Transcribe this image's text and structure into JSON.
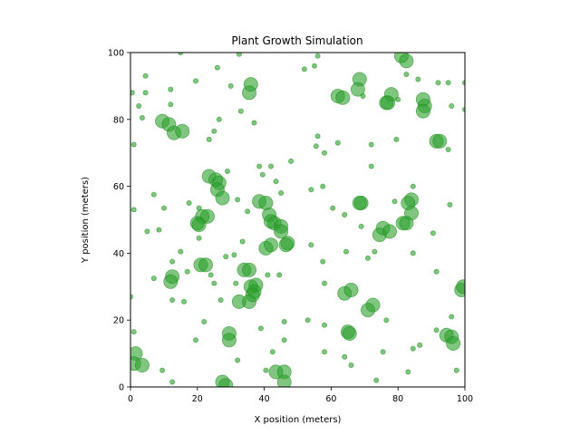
{
  "chart_data": {
    "type": "scatter",
    "title": "Plant Growth Simulation",
    "xlabel": "X position (meters)",
    "ylabel": "Y position (meters)",
    "xlim": [
      0,
      100
    ],
    "ylim": [
      0,
      100
    ],
    "x_ticks": [
      "0",
      "20",
      "40",
      "60",
      "80",
      "100"
    ],
    "y_ticks": [
      "0",
      "20",
      "40",
      "60",
      "80",
      "100"
    ],
    "grid": false,
    "marker_color": "#2ca02c",
    "marker_edge_color": "#1a8a1a",
    "marker_alpha": 0.6,
    "size_note": "marker area encodes plant size (small/medium/large)",
    "points": [
      {
        "x": 9.5,
        "y": 79.5,
        "s": "l"
      },
      {
        "x": 11.5,
        "y": 78.5,
        "s": "l"
      },
      {
        "x": 13,
        "y": 76,
        "s": "l"
      },
      {
        "x": 15.5,
        "y": 76.5,
        "s": "l"
      },
      {
        "x": 36,
        "y": 90.5,
        "s": "l"
      },
      {
        "x": 35.5,
        "y": 88,
        "s": "l"
      },
      {
        "x": 23.5,
        "y": 63,
        "s": "l"
      },
      {
        "x": 25.5,
        "y": 62,
        "s": "l"
      },
      {
        "x": 26.5,
        "y": 61,
        "s": "l"
      },
      {
        "x": 26,
        "y": 59,
        "s": "l"
      },
      {
        "x": 27.5,
        "y": 56.5,
        "s": "l"
      },
      {
        "x": 21.5,
        "y": 51,
        "s": "l"
      },
      {
        "x": 23,
        "y": 51,
        "s": "l"
      },
      {
        "x": 20,
        "y": 49,
        "s": "l"
      },
      {
        "x": 20.5,
        "y": 48.5,
        "s": "l"
      },
      {
        "x": 38.5,
        "y": 55.5,
        "s": "l"
      },
      {
        "x": 40.5,
        "y": 55,
        "s": "l"
      },
      {
        "x": 41.5,
        "y": 51.5,
        "s": "l"
      },
      {
        "x": 42,
        "y": 49.5,
        "s": "l"
      },
      {
        "x": 43,
        "y": 49,
        "s": "l"
      },
      {
        "x": 45,
        "y": 48,
        "s": "l"
      },
      {
        "x": 45,
        "y": 46.5,
        "s": "l"
      },
      {
        "x": 47,
        "y": 43,
        "s": "l"
      },
      {
        "x": 46.5,
        "y": 42.5,
        "s": "l"
      },
      {
        "x": 42,
        "y": 42.5,
        "s": "l"
      },
      {
        "x": 40.5,
        "y": 41.5,
        "s": "l"
      },
      {
        "x": 21,
        "y": 36.5,
        "s": "l"
      },
      {
        "x": 22.5,
        "y": 36.5,
        "s": "l"
      },
      {
        "x": 12.5,
        "y": 33,
        "s": "l"
      },
      {
        "x": 12,
        "y": 31.5,
        "s": "l"
      },
      {
        "x": 34,
        "y": 35,
        "s": "l"
      },
      {
        "x": 35.5,
        "y": 35,
        "s": "l"
      },
      {
        "x": 36,
        "y": 30,
        "s": "l"
      },
      {
        "x": 37.5,
        "y": 30.5,
        "s": "l"
      },
      {
        "x": 37,
        "y": 28.5,
        "s": "l"
      },
      {
        "x": 36.5,
        "y": 27.5,
        "s": "l"
      },
      {
        "x": 32.5,
        "y": 25.5,
        "s": "l"
      },
      {
        "x": 35.5,
        "y": 25.5,
        "s": "l"
      },
      {
        "x": 29.5,
        "y": 16,
        "s": "l"
      },
      {
        "x": 29.5,
        "y": 14,
        "s": "l"
      },
      {
        "x": 27.5,
        "y": 1.5,
        "s": "l"
      },
      {
        "x": 28.5,
        "y": 0.5,
        "s": "l"
      },
      {
        "x": 1.5,
        "y": 10,
        "s": "l"
      },
      {
        "x": 1,
        "y": 7,
        "s": "l"
      },
      {
        "x": 3.5,
        "y": 6.5,
        "s": "l"
      },
      {
        "x": 43.5,
        "y": 4.5,
        "s": "l"
      },
      {
        "x": 46,
        "y": 4.5,
        "s": "l"
      },
      {
        "x": 46,
        "y": 1.5,
        "s": "l"
      },
      {
        "x": 62,
        "y": 87,
        "s": "l"
      },
      {
        "x": 63.5,
        "y": 86.5,
        "s": "l"
      },
      {
        "x": 68.5,
        "y": 92,
        "s": "l"
      },
      {
        "x": 68,
        "y": 89,
        "s": "l"
      },
      {
        "x": 78,
        "y": 87.5,
        "s": "l"
      },
      {
        "x": 76.5,
        "y": 85,
        "s": "l"
      },
      {
        "x": 77,
        "y": 85,
        "s": "l"
      },
      {
        "x": 81,
        "y": 99,
        "s": "l"
      },
      {
        "x": 82.5,
        "y": 97.5,
        "s": "l"
      },
      {
        "x": 87.5,
        "y": 86,
        "s": "l"
      },
      {
        "x": 88,
        "y": 84,
        "s": "l"
      },
      {
        "x": 87.5,
        "y": 82.5,
        "s": "l"
      },
      {
        "x": 91.5,
        "y": 73.5,
        "s": "l"
      },
      {
        "x": 92.5,
        "y": 73.5,
        "s": "l"
      },
      {
        "x": 69,
        "y": 55,
        "s": "l"
      },
      {
        "x": 68.5,
        "y": 55,
        "s": "l"
      },
      {
        "x": 84,
        "y": 56,
        "s": "l"
      },
      {
        "x": 83,
        "y": 55,
        "s": "l"
      },
      {
        "x": 84,
        "y": 52,
        "s": "l"
      },
      {
        "x": 81.5,
        "y": 49,
        "s": "l"
      },
      {
        "x": 82.5,
        "y": 49,
        "s": "l"
      },
      {
        "x": 75.5,
        "y": 47.5,
        "s": "l"
      },
      {
        "x": 74.5,
        "y": 45.5,
        "s": "l"
      },
      {
        "x": 77.5,
        "y": 46.5,
        "s": "l"
      },
      {
        "x": 64,
        "y": 28,
        "s": "l"
      },
      {
        "x": 66,
        "y": 29,
        "s": "l"
      },
      {
        "x": 72.5,
        "y": 24.5,
        "s": "l"
      },
      {
        "x": 71,
        "y": 23,
        "s": "l"
      },
      {
        "x": 65,
        "y": 16.5,
        "s": "l"
      },
      {
        "x": 65.5,
        "y": 16,
        "s": "l"
      },
      {
        "x": 94.5,
        "y": 15.5,
        "s": "l"
      },
      {
        "x": 96,
        "y": 15,
        "s": "l"
      },
      {
        "x": 96.5,
        "y": 13,
        "s": "l"
      },
      {
        "x": 99,
        "y": 29,
        "s": "l"
      },
      {
        "x": 99.5,
        "y": 30,
        "s": "l"
      },
      {
        "x": 0.5,
        "y": 88,
        "s": "s"
      },
      {
        "x": 4.5,
        "y": 88,
        "s": "s"
      },
      {
        "x": 4.5,
        "y": 93,
        "s": "s"
      },
      {
        "x": 2.5,
        "y": 84,
        "s": "s"
      },
      {
        "x": 3.5,
        "y": 80.5,
        "s": "s"
      },
      {
        "x": 12,
        "y": 89,
        "s": "s"
      },
      {
        "x": 12,
        "y": 84.5,
        "s": "s"
      },
      {
        "x": 15,
        "y": 100,
        "s": "s"
      },
      {
        "x": 19.5,
        "y": 91.5,
        "s": "s"
      },
      {
        "x": 26,
        "y": 95.5,
        "s": "s"
      },
      {
        "x": 32.5,
        "y": 99.5,
        "s": "s"
      },
      {
        "x": 30,
        "y": 90,
        "s": "s"
      },
      {
        "x": 33,
        "y": 82.5,
        "s": "s"
      },
      {
        "x": 37,
        "y": 79,
        "s": "s"
      },
      {
        "x": 26.5,
        "y": 80,
        "s": "s"
      },
      {
        "x": 25,
        "y": 76.5,
        "s": "s"
      },
      {
        "x": 23.5,
        "y": 74,
        "s": "s"
      },
      {
        "x": 1,
        "y": 72.5,
        "s": "s"
      },
      {
        "x": 38.5,
        "y": 66,
        "s": "s"
      },
      {
        "x": 42,
        "y": 66,
        "s": "s"
      },
      {
        "x": 39.5,
        "y": 63.5,
        "s": "s"
      },
      {
        "x": 43.5,
        "y": 61.5,
        "s": "s"
      },
      {
        "x": 45,
        "y": 58,
        "s": "s"
      },
      {
        "x": 48,
        "y": 67.5,
        "s": "s"
      },
      {
        "x": 29,
        "y": 64.5,
        "s": "s"
      },
      {
        "x": 7,
        "y": 57.5,
        "s": "s"
      },
      {
        "x": 1,
        "y": 53,
        "s": "s"
      },
      {
        "x": 10,
        "y": 53.5,
        "s": "s"
      },
      {
        "x": 17.5,
        "y": 55,
        "s": "s"
      },
      {
        "x": 20.5,
        "y": 53.5,
        "s": "s"
      },
      {
        "x": 32,
        "y": 56,
        "s": "s"
      },
      {
        "x": 35,
        "y": 52.5,
        "s": "s"
      },
      {
        "x": 5,
        "y": 46.5,
        "s": "s"
      },
      {
        "x": 8.5,
        "y": 47,
        "s": "s"
      },
      {
        "x": 20.5,
        "y": 44.5,
        "s": "s"
      },
      {
        "x": 33.5,
        "y": 43.5,
        "s": "s"
      },
      {
        "x": 28.5,
        "y": 39,
        "s": "s"
      },
      {
        "x": 31,
        "y": 39.5,
        "s": "s"
      },
      {
        "x": 15,
        "y": 40.5,
        "s": "s"
      },
      {
        "x": 12.5,
        "y": 37.5,
        "s": "s"
      },
      {
        "x": 17,
        "y": 34.5,
        "s": "s"
      },
      {
        "x": 7,
        "y": 32.5,
        "s": "s"
      },
      {
        "x": 24,
        "y": 33.5,
        "s": "s"
      },
      {
        "x": 25,
        "y": 31,
        "s": "s"
      },
      {
        "x": 31.5,
        "y": 31,
        "s": "s"
      },
      {
        "x": 41,
        "y": 33.5,
        "s": "s"
      },
      {
        "x": 44.5,
        "y": 33.5,
        "s": "s"
      },
      {
        "x": 0,
        "y": 27,
        "s": "s"
      },
      {
        "x": 12.5,
        "y": 26,
        "s": "s"
      },
      {
        "x": 16,
        "y": 25.5,
        "s": "s"
      },
      {
        "x": 27,
        "y": 26,
        "s": "s"
      },
      {
        "x": 22,
        "y": 19.5,
        "s": "s"
      },
      {
        "x": 1,
        "y": 16.5,
        "s": "s"
      },
      {
        "x": 19.5,
        "y": 14,
        "s": "s"
      },
      {
        "x": 9.5,
        "y": 5,
        "s": "s"
      },
      {
        "x": 12.5,
        "y": 1.5,
        "s": "s"
      },
      {
        "x": 32,
        "y": 8,
        "s": "s"
      },
      {
        "x": 39,
        "y": 17.5,
        "s": "s"
      },
      {
        "x": 42.5,
        "y": 10.5,
        "s": "s"
      },
      {
        "x": 46,
        "y": 14,
        "s": "s"
      },
      {
        "x": 46,
        "y": 19.5,
        "s": "s"
      },
      {
        "x": 40.5,
        "y": 5,
        "s": "s"
      },
      {
        "x": 52,
        "y": 95,
        "s": "s"
      },
      {
        "x": 55,
        "y": 96,
        "s": "s"
      },
      {
        "x": 56,
        "y": 99,
        "s": "s"
      },
      {
        "x": 69.5,
        "y": 87,
        "s": "s"
      },
      {
        "x": 80,
        "y": 86,
        "s": "s"
      },
      {
        "x": 82.5,
        "y": 93.5,
        "s": "s"
      },
      {
        "x": 86,
        "y": 92,
        "s": "s"
      },
      {
        "x": 92,
        "y": 91,
        "s": "s"
      },
      {
        "x": 95,
        "y": 91,
        "s": "s"
      },
      {
        "x": 100,
        "y": 91,
        "s": "s"
      },
      {
        "x": 96,
        "y": 84,
        "s": "s"
      },
      {
        "x": 100,
        "y": 83,
        "s": "s"
      },
      {
        "x": 56,
        "y": 75,
        "s": "s"
      },
      {
        "x": 55.5,
        "y": 72,
        "s": "s"
      },
      {
        "x": 58,
        "y": 70,
        "s": "s"
      },
      {
        "x": 62,
        "y": 73,
        "s": "s"
      },
      {
        "x": 72,
        "y": 72.5,
        "s": "s"
      },
      {
        "x": 79.5,
        "y": 74,
        "s": "s"
      },
      {
        "x": 95,
        "y": 71,
        "s": "s"
      },
      {
        "x": 72,
        "y": 66,
        "s": "s"
      },
      {
        "x": 54,
        "y": 59,
        "s": "s"
      },
      {
        "x": 57.5,
        "y": 60,
        "s": "s"
      },
      {
        "x": 84.5,
        "y": 60,
        "s": "s"
      },
      {
        "x": 60.5,
        "y": 53.5,
        "s": "s"
      },
      {
        "x": 64,
        "y": 51.5,
        "s": "s"
      },
      {
        "x": 79,
        "y": 55.5,
        "s": "s"
      },
      {
        "x": 95.5,
        "y": 54.5,
        "s": "s"
      },
      {
        "x": 69,
        "y": 48,
        "s": "s"
      },
      {
        "x": 90.5,
        "y": 46,
        "s": "s"
      },
      {
        "x": 54,
        "y": 42.5,
        "s": "s"
      },
      {
        "x": 64.5,
        "y": 40.5,
        "s": "s"
      },
      {
        "x": 71,
        "y": 38.5,
        "s": "s"
      },
      {
        "x": 57.5,
        "y": 37.5,
        "s": "s"
      },
      {
        "x": 73,
        "y": 40.5,
        "s": "s"
      },
      {
        "x": 84.5,
        "y": 40,
        "s": "s"
      },
      {
        "x": 91.5,
        "y": 34.5,
        "s": "s"
      },
      {
        "x": 58,
        "y": 31,
        "s": "s"
      },
      {
        "x": 53,
        "y": 20,
        "s": "s"
      },
      {
        "x": 58,
        "y": 18.5,
        "s": "s"
      },
      {
        "x": 76.5,
        "y": 20,
        "s": "s"
      },
      {
        "x": 96,
        "y": 21,
        "s": "s"
      },
      {
        "x": 91.5,
        "y": 17,
        "s": "s"
      },
      {
        "x": 84.5,
        "y": 11.5,
        "s": "s"
      },
      {
        "x": 86.5,
        "y": 12.5,
        "s": "s"
      },
      {
        "x": 75.5,
        "y": 10.5,
        "s": "s"
      },
      {
        "x": 58,
        "y": 10.5,
        "s": "s"
      },
      {
        "x": 64,
        "y": 9,
        "s": "s"
      },
      {
        "x": 66,
        "y": 6.5,
        "s": "s"
      },
      {
        "x": 73.5,
        "y": 2,
        "s": "s"
      },
      {
        "x": 83,
        "y": 4.5,
        "s": "s"
      },
      {
        "x": 97.5,
        "y": 5,
        "s": "s"
      }
    ]
  }
}
